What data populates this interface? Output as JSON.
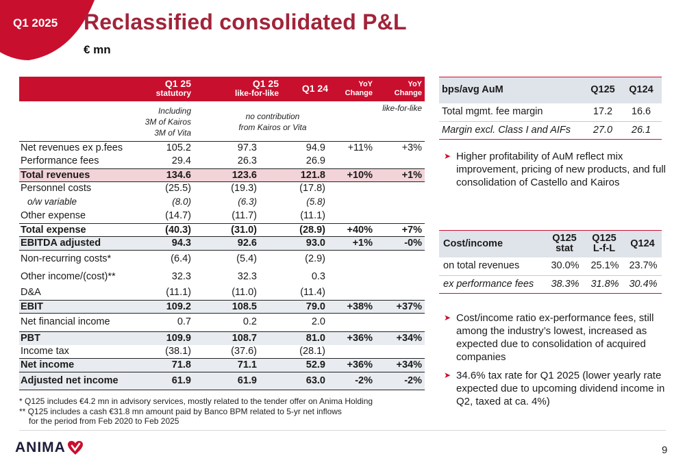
{
  "header": {
    "period_tag": "Q1 2025",
    "title": "Reclassified consolidated P&L",
    "unit": "€ mn"
  },
  "pl_table": {
    "columns": [
      {
        "line1": "Q1 25",
        "line2": "statutory"
      },
      {
        "line1": "Q1 25",
        "line2": "like-for-like"
      },
      {
        "line1": "Q1 24",
        "line2": ""
      },
      {
        "line1": "YoY",
        "line2": "Change"
      },
      {
        "line1": "YoY",
        "line2": "Change"
      }
    ],
    "notes": {
      "statutory_line1": "Including",
      "statutory_line2": "3M of Kairos",
      "statutory_line3": "3M of Vita",
      "lfl_line1": "no contribution",
      "lfl_line2": "from Kairos or Vita",
      "yoy_lfl": "like-for-like"
    },
    "rows": [
      {
        "label": "Net revenues ex p.fees",
        "stat": "105.2",
        "lfl": "97.3",
        "q124": "94.9",
        "yoy": "+11%",
        "yoy_lfl": "+3%"
      },
      {
        "label": "Performance fees",
        "stat": "29.4",
        "lfl": "26.3",
        "q124": "26.9",
        "yoy": "",
        "yoy_lfl": ""
      },
      {
        "label": "Total revenues",
        "stat": "134.6",
        "lfl": "123.6",
        "q124": "121.8",
        "yoy": "+10%",
        "yoy_lfl": "+1%"
      },
      {
        "label": "Personnel costs",
        "stat": "(25.5)",
        "lfl": "(19.3)",
        "q124": "(17.8)",
        "yoy": "",
        "yoy_lfl": ""
      },
      {
        "label": "o/w variable",
        "stat": "(8.0)",
        "lfl": "(6.3)",
        "q124": "(5.8)",
        "yoy": "",
        "yoy_lfl": ""
      },
      {
        "label": "Other expense",
        "stat": "(14.7)",
        "lfl": "(11.7)",
        "q124": "(11.1)",
        "yoy": "",
        "yoy_lfl": ""
      },
      {
        "label": "Total expense",
        "stat": "(40.3)",
        "lfl": "(31.0)",
        "q124": "(28.9)",
        "yoy": "+40%",
        "yoy_lfl": "+7%"
      },
      {
        "label": "EBITDA adjusted",
        "stat": "94.3",
        "lfl": "92.6",
        "q124": "93.0",
        "yoy": "+1%",
        "yoy_lfl": "-0%"
      },
      {
        "label": "Non-recurring costs*",
        "stat": "(6.4)",
        "lfl": "(5.4)",
        "q124": "(2.9)",
        "yoy": "",
        "yoy_lfl": ""
      },
      {
        "label": "Other income/(cost)**",
        "stat": "32.3",
        "lfl": "32.3",
        "q124": "0.3",
        "yoy": "",
        "yoy_lfl": ""
      },
      {
        "label": "D&A",
        "stat": "(11.1)",
        "lfl": "(11.0)",
        "q124": "(11.4)",
        "yoy": "",
        "yoy_lfl": ""
      },
      {
        "label": "EBIT",
        "stat": "109.2",
        "lfl": "108.5",
        "q124": "79.0",
        "yoy": "+38%",
        "yoy_lfl": "+37%"
      },
      {
        "label": "Net financial income",
        "stat": "0.7",
        "lfl": "0.2",
        "q124": "2.0",
        "yoy": "",
        "yoy_lfl": ""
      },
      {
        "label": "PBT",
        "stat": "109.9",
        "lfl": "108.7",
        "q124": "81.0",
        "yoy": "+36%",
        "yoy_lfl": "+34%"
      },
      {
        "label": "Income tax",
        "stat": "(38.1)",
        "lfl": "(37.6)",
        "q124": "(28.1)",
        "yoy": "",
        "yoy_lfl": ""
      },
      {
        "label": "Net income",
        "stat": "71.8",
        "lfl": "71.1",
        "q124": "52.9",
        "yoy": "+36%",
        "yoy_lfl": "+34%"
      },
      {
        "label": "Adjusted net income",
        "stat": "61.9",
        "lfl": "61.9",
        "q124": "63.0",
        "yoy": "-2%",
        "yoy_lfl": "-2%"
      }
    ]
  },
  "footnotes": {
    "f1": "*   Q125 includes €4.2 mn in advisory services, mostly related to the tender offer on Anima Holding",
    "f2": "** Q125 includes a cash €31.8 mn amount paid by Banco BPM related to 5-yr net inflows",
    "f3": "for the period from Feb 2020 to Feb 2025"
  },
  "fee_table": {
    "header": {
      "label": "bps/avg AuM",
      "c1": "Q125",
      "c2": "Q124"
    },
    "rows": [
      {
        "label": "Total mgmt. fee margin",
        "c1": "17.2",
        "c2": "16.6"
      },
      {
        "label": "Margin excl. Class I and AIFs",
        "c1": "27.0",
        "c2": "26.1"
      }
    ]
  },
  "fee_bullet": "Higher profitability of AuM reflect mix improvement, pricing of new products, and full consolidation of Castello and Kairos",
  "cost_table": {
    "header": {
      "label": "Cost/income",
      "c1a": "Q125",
      "c1b": "stat",
      "c2a": "Q125",
      "c2b": "L-f-L",
      "c3": "Q124"
    },
    "rows": [
      {
        "label": "on total revenues",
        "c1": "30.0%",
        "c2": "25.1%",
        "c3": "23.7%"
      },
      {
        "label": "ex performance fees",
        "c1": "38.3%",
        "c2": "31.8%",
        "c3": "30.4%"
      }
    ]
  },
  "cost_bullets": [
    "Cost/income ratio ex-performance fees, still among the industry’s lowest, increased as expected due to consolidation of acquired companies",
    "34.6% tax rate for Q1 2025 (lower yearly rate expected due to upcoming dividend income in Q2, taxed at ca. 4%)"
  ],
  "footer": {
    "logo_text": "ANIMA",
    "page_number": "9"
  },
  "colors": {
    "brand_red": "#c8102e",
    "title_red": "#a1243a",
    "pink_row": "#f2d3d8",
    "grey_row": "#e8ebef"
  }
}
